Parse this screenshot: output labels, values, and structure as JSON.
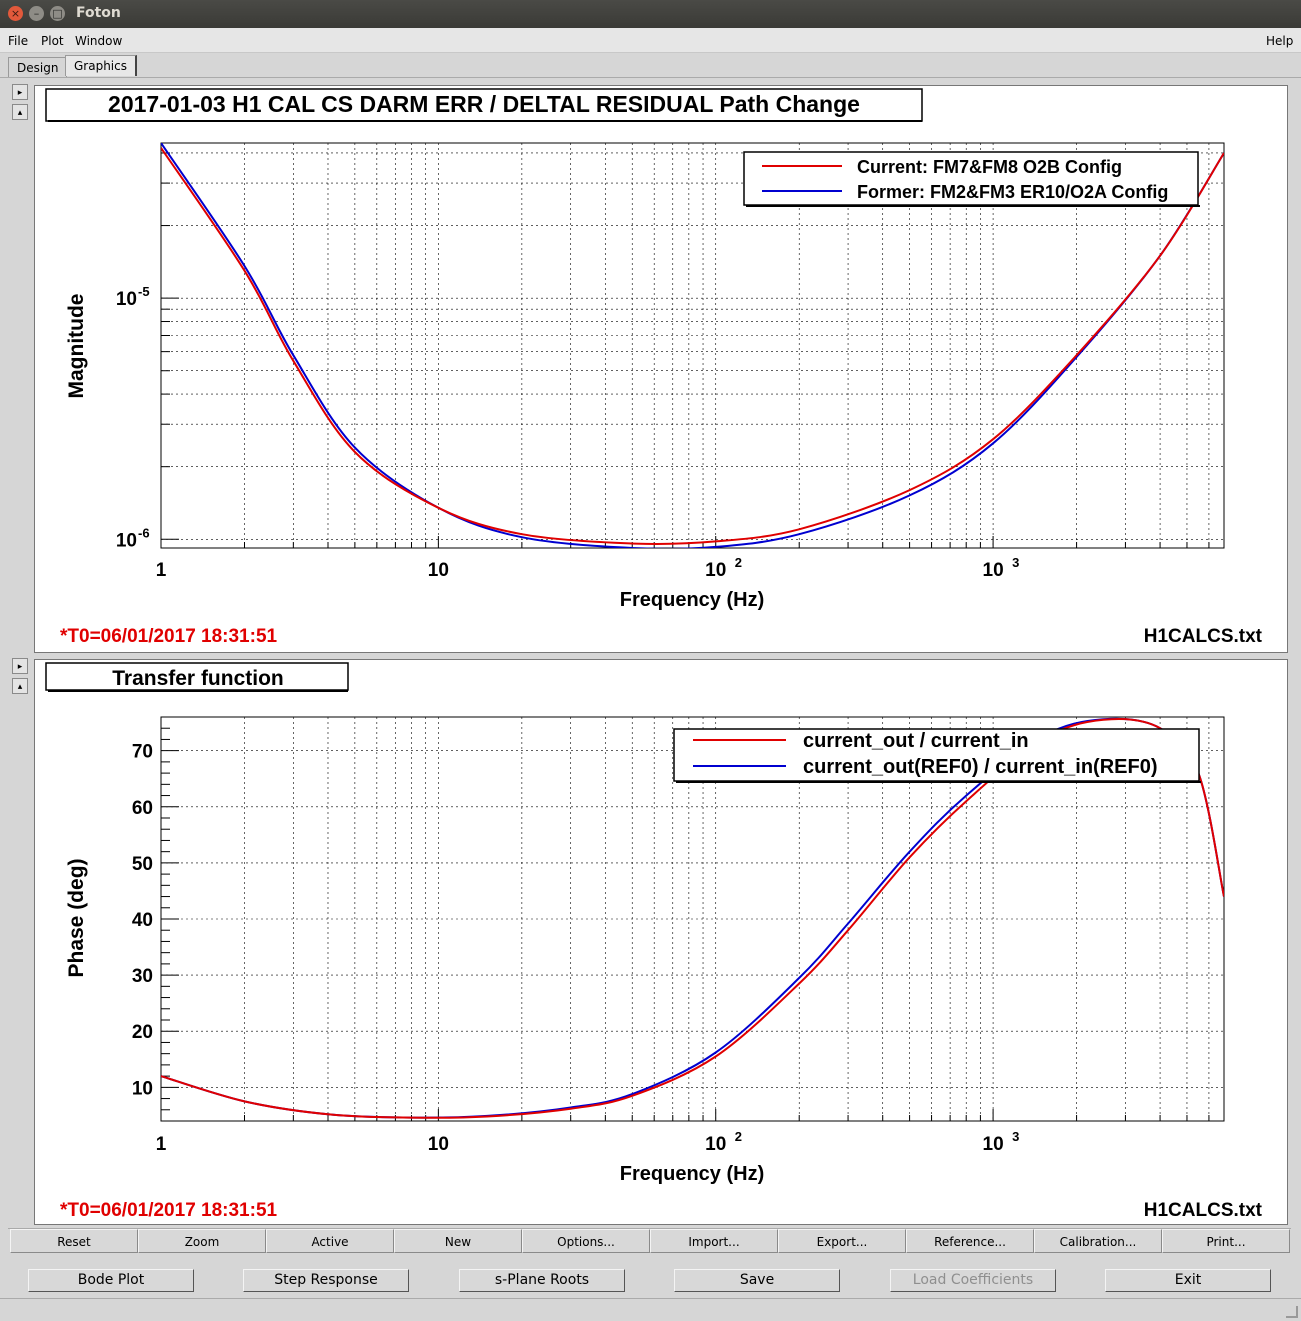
{
  "window": {
    "title": "Foton"
  },
  "menu": {
    "file": "File",
    "plot": "Plot",
    "window": "Window",
    "help": "Help"
  },
  "tabs": {
    "design": "Design",
    "graphics": "Graphics"
  },
  "plot1": {
    "title": "2017-01-03 H1 CAL CS DARM ERR / DELTAL RESIDUAL Path Change",
    "legend": [
      "Current: FM7&FM8 O2B Config",
      "Former: FM2&FM3 ER10/O2A Config"
    ],
    "ylabel": "Magnitude",
    "xlabel": "Frequency (Hz)",
    "x_ticks": [
      "1",
      "10",
      "10",
      "10"
    ],
    "x_tick_exps": [
      "",
      "",
      "2",
      "3"
    ],
    "y_ticks": [
      "10",
      "10"
    ],
    "y_tick_exps": [
      "-5",
      "-6"
    ],
    "t0": "*T0=06/01/2017 18:31:51",
    "file": "H1CALCS.txt"
  },
  "plot2": {
    "title": "Transfer function",
    "legend": [
      "current_out / current_in",
      "current_out(REF0) / current_in(REF0)"
    ],
    "ylabel": "Phase (deg)",
    "xlabel": "Frequency (Hz)",
    "x_ticks": [
      "1",
      "10",
      "10",
      "10"
    ],
    "x_tick_exps": [
      "",
      "",
      "2",
      "3"
    ],
    "y_ticks": [
      "70",
      "60",
      "50",
      "40",
      "30",
      "20",
      "10"
    ],
    "t0": "*T0=06/01/2017 18:31:51",
    "file": "H1CALCS.txt"
  },
  "toolbar1": [
    "Reset",
    "Zoom",
    "Active",
    "New",
    "Options...",
    "Import...",
    "Export...",
    "Reference...",
    "Calibration...",
    "Print..."
  ],
  "toolbar2": [
    "Bode Plot",
    "Step Response",
    "s-Plane Roots",
    "Save",
    "Load Coefficients",
    "Exit"
  ],
  "colors": {
    "current": "#e00000",
    "former": "#0000d0",
    "annotation": "#e00000"
  },
  "chart_data": [
    {
      "type": "line",
      "title": "2017-01-03 H1 CAL CS DARM ERR / DELTAL RESIDUAL Path Change",
      "xlabel": "Frequency (Hz)",
      "ylabel": "Magnitude",
      "xscale": "log",
      "yscale": "log",
      "xlim": [
        1,
        6800
      ],
      "ylim": [
        9.2e-07,
        4.4e-05
      ],
      "grid": true,
      "legend_position": "top-right",
      "series": [
        {
          "name": "Current: FM7&FM8 O2B Config",
          "color": "#e00000",
          "x": [
            1,
            2,
            3,
            5,
            10,
            20,
            50,
            100,
            200,
            500,
            1000,
            2000,
            4000,
            6800
          ],
          "y": [
            4.2e-05,
            1.3e-05,
            5.5e-06,
            2.3e-06,
            1.35e-06,
            1.05e-06,
            9.6e-07,
            9.8e-07,
            1.1e-06,
            1.6e-06,
            2.6e-06,
            5.8e-06,
            1.5e-05,
            4e-05
          ]
        },
        {
          "name": "Former: FM2&FM3 ER10/O2A Config",
          "color": "#0000d0",
          "x": [
            1,
            2,
            3,
            5,
            10,
            20,
            50,
            100,
            200,
            500,
            1000,
            2000,
            4000,
            6800
          ],
          "y": [
            4.4e-05,
            1.36e-05,
            5.8e-06,
            2.4e-06,
            1.35e-06,
            1.02e-06,
            9.2e-07,
            9.3e-07,
            1.05e-06,
            1.52e-06,
            2.5e-06,
            5.7e-06,
            1.5e-05,
            4e-05
          ]
        }
      ]
    },
    {
      "type": "line",
      "title": "Transfer function",
      "xlabel": "Frequency (Hz)",
      "ylabel": "Phase (deg)",
      "xscale": "log",
      "xlim": [
        1,
        6800
      ],
      "ylim": [
        4,
        76
      ],
      "grid": true,
      "legend_position": "top-right",
      "series": [
        {
          "name": "current_out / current_in",
          "color": "#e00000",
          "x": [
            1,
            2,
            4,
            8,
            15,
            30,
            50,
            100,
            200,
            300,
            500,
            800,
            1500,
            2500,
            4000,
            5500,
            6800
          ],
          "y": [
            12,
            7.5,
            5.2,
            4.6,
            4.8,
            6.2,
            8.5,
            15.5,
            28.5,
            38,
            51,
            61,
            72,
            75.5,
            74,
            66,
            44
          ]
        },
        {
          "name": "current_out(REF0) / current_in(REF0)",
          "color": "#0000d0",
          "x": [
            1,
            2,
            4,
            8,
            15,
            30,
            50,
            100,
            200,
            300,
            500,
            800,
            1500,
            2500,
            4000,
            5500,
            6800
          ],
          "y": [
            12,
            7.5,
            5.2,
            4.6,
            4.9,
            6.4,
            8.8,
            16.2,
            29.5,
            39.2,
            52,
            62,
            72.5,
            75.6,
            74,
            66,
            44
          ]
        }
      ]
    }
  ]
}
